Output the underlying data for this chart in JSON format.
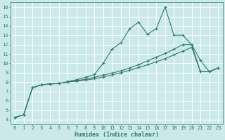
{
  "xlabel": "Humidex (Indice chaleur)",
  "ylabel": "",
  "bg_color": "#cce9e9",
  "line_color": "#2d7d6e",
  "grid_color": "#b0d8d8",
  "xlim": [
    -0.5,
    23.5
  ],
  "ylim": [
    3.5,
    16.5
  ],
  "xticks": [
    0,
    1,
    2,
    3,
    4,
    5,
    6,
    7,
    8,
    9,
    10,
    11,
    12,
    13,
    14,
    15,
    16,
    17,
    18,
    19,
    20,
    21,
    22,
    23
  ],
  "yticks": [
    4,
    5,
    6,
    7,
    8,
    9,
    10,
    11,
    12,
    13,
    14,
    15,
    16
  ],
  "line1_x": [
    0,
    1,
    2,
    3,
    4,
    5,
    6,
    7,
    8,
    9,
    10,
    11,
    12,
    13,
    14,
    15,
    16,
    17,
    18,
    19,
    20,
    21,
    22,
    23
  ],
  "line1_y": [
    4.2,
    4.5,
    7.4,
    7.7,
    7.8,
    7.85,
    8.05,
    8.25,
    8.5,
    8.8,
    10.0,
    11.5,
    12.2,
    13.7,
    14.4,
    13.1,
    13.7,
    16.0,
    13.0,
    13.0,
    12.0,
    10.3,
    9.1,
    9.5
  ],
  "line2_x": [
    0,
    1,
    2,
    3,
    4,
    5,
    6,
    7,
    8,
    9,
    10,
    11,
    12,
    13,
    14,
    15,
    16,
    17,
    18,
    19,
    20,
    21,
    22,
    23
  ],
  "line2_y": [
    4.2,
    4.5,
    7.4,
    7.7,
    7.8,
    7.85,
    8.0,
    8.15,
    8.3,
    8.5,
    8.75,
    8.95,
    9.2,
    9.5,
    9.85,
    10.25,
    10.65,
    11.05,
    11.5,
    12.0,
    12.0,
    9.1,
    9.1,
    9.5
  ],
  "line3_x": [
    0,
    1,
    2,
    3,
    4,
    5,
    6,
    7,
    8,
    9,
    10,
    11,
    12,
    13,
    14,
    15,
    16,
    17,
    18,
    19,
    20,
    21,
    22,
    23
  ],
  "line3_y": [
    4.2,
    4.5,
    7.4,
    7.7,
    7.8,
    7.85,
    8.0,
    8.1,
    8.2,
    8.35,
    8.55,
    8.75,
    9.0,
    9.25,
    9.55,
    9.85,
    10.15,
    10.5,
    10.9,
    11.3,
    11.7,
    9.1,
    9.1,
    9.5
  ],
  "marker": "+",
  "markersize": 3.5,
  "linewidth": 0.8,
  "xlabel_fontsize": 6.0,
  "tick_fontsize": 5.0
}
